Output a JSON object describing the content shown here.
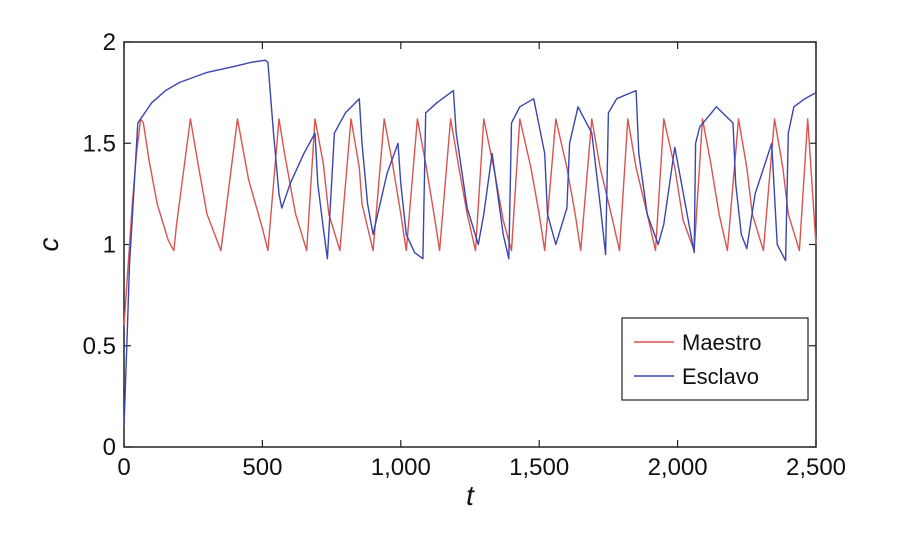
{
  "chart_data": {
    "type": "line",
    "title": "",
    "xlabel": "t",
    "ylabel": "c",
    "xlim": [
      0,
      2500
    ],
    "ylim": [
      0,
      2
    ],
    "x_ticks": [
      0,
      500,
      1000,
      1500,
      2000,
      2500
    ],
    "x_tick_labels": [
      "0",
      "500",
      "1,000",
      "1,500",
      "2,000",
      "2,500"
    ],
    "y_ticks": [
      0,
      0.5,
      1,
      1.5,
      2
    ],
    "y_tick_labels": [
      "0",
      "0.5",
      "1",
      "1.5",
      "2"
    ],
    "grid": false,
    "legend_position": "bottom-right",
    "series": [
      {
        "name": "Maestro",
        "color": "#d9534f",
        "x": [
          0,
          15,
          30,
          45,
          60,
          70,
          90,
          120,
          160,
          180,
          190,
          240,
          270,
          300,
          350,
          410,
          450,
          500,
          520,
          560,
          580,
          620,
          660,
          690,
          720,
          740,
          780,
          820,
          850,
          860,
          900,
          940,
          970,
          1000,
          1020,
          1060,
          1090,
          1120,
          1140,
          1180,
          1210,
          1240,
          1270,
          1300,
          1340,
          1370,
          1400,
          1430,
          1470,
          1500,
          1520,
          1560,
          1600,
          1630,
          1650,
          1690,
          1720,
          1760,
          1790,
          1820,
          1850,
          1890,
          1920,
          1950,
          1990,
          2020,
          2060,
          2090,
          2120,
          2150,
          2180,
          2220,
          2250,
          2270,
          2310,
          2350,
          2380,
          2400,
          2440,
          2470,
          2500
        ],
        "y": [
          0.6,
          0.9,
          1.2,
          1.45,
          1.62,
          1.6,
          1.42,
          1.2,
          1.02,
          0.97,
          1.1,
          1.62,
          1.38,
          1.15,
          0.97,
          1.62,
          1.32,
          1.08,
          0.97,
          1.62,
          1.45,
          1.15,
          0.97,
          1.62,
          1.4,
          1.15,
          0.97,
          1.62,
          1.38,
          1.2,
          0.97,
          1.62,
          1.4,
          1.15,
          0.97,
          1.62,
          1.4,
          1.15,
          0.97,
          1.62,
          1.38,
          1.15,
          0.97,
          1.62,
          1.35,
          1.12,
          0.97,
          1.62,
          1.38,
          1.15,
          0.97,
          1.62,
          1.38,
          1.15,
          0.97,
          1.62,
          1.38,
          1.15,
          0.97,
          1.62,
          1.38,
          1.15,
          0.97,
          1.62,
          1.38,
          1.12,
          0.97,
          1.62,
          1.4,
          1.15,
          0.97,
          1.62,
          1.38,
          1.15,
          0.97,
          1.62,
          1.38,
          1.15,
          0.97,
          1.62,
          1.0
        ]
      },
      {
        "name": "Esclavo",
        "color": "#3a46b0",
        "x": [
          0,
          10,
          20,
          35,
          50,
          70,
          100,
          150,
          200,
          300,
          400,
          460,
          510,
          520,
          540,
          560,
          570,
          600,
          650,
          690,
          700,
          720,
          735,
          760,
          800,
          850,
          860,
          880,
          900,
          950,
          990,
          1000,
          1020,
          1050,
          1080,
          1090,
          1130,
          1190,
          1200,
          1240,
          1280,
          1300,
          1330,
          1340,
          1370,
          1390,
          1400,
          1430,
          1480,
          1520,
          1530,
          1560,
          1600,
          1610,
          1640,
          1690,
          1720,
          1740,
          1750,
          1780,
          1850,
          1860,
          1890,
          1930,
          1950,
          1990,
          2060,
          2065,
          2080,
          2140,
          2200,
          2210,
          2230,
          2250,
          2280,
          2340,
          2360,
          2390,
          2400,
          2420,
          2460,
          2500
        ],
        "y": [
          0.1,
          0.5,
          0.9,
          1.25,
          1.6,
          1.64,
          1.7,
          1.76,
          1.8,
          1.85,
          1.88,
          1.9,
          1.91,
          1.9,
          1.55,
          1.25,
          1.18,
          1.3,
          1.45,
          1.55,
          1.3,
          1.08,
          0.93,
          1.55,
          1.65,
          1.72,
          1.5,
          1.2,
          1.05,
          1.35,
          1.5,
          1.3,
          1.05,
          0.96,
          0.93,
          1.65,
          1.7,
          1.76,
          1.55,
          1.18,
          1.0,
          1.15,
          1.45,
          1.35,
          1.05,
          0.93,
          1.6,
          1.68,
          1.72,
          1.45,
          1.15,
          1.0,
          1.18,
          1.5,
          1.68,
          1.55,
          1.2,
          0.95,
          1.65,
          1.72,
          1.76,
          1.45,
          1.15,
          1.0,
          1.1,
          1.48,
          0.96,
          1.5,
          1.58,
          1.68,
          1.6,
          1.3,
          1.05,
          0.98,
          1.25,
          1.5,
          1.0,
          0.92,
          1.55,
          1.68,
          1.72,
          1.75
        ]
      }
    ]
  }
}
